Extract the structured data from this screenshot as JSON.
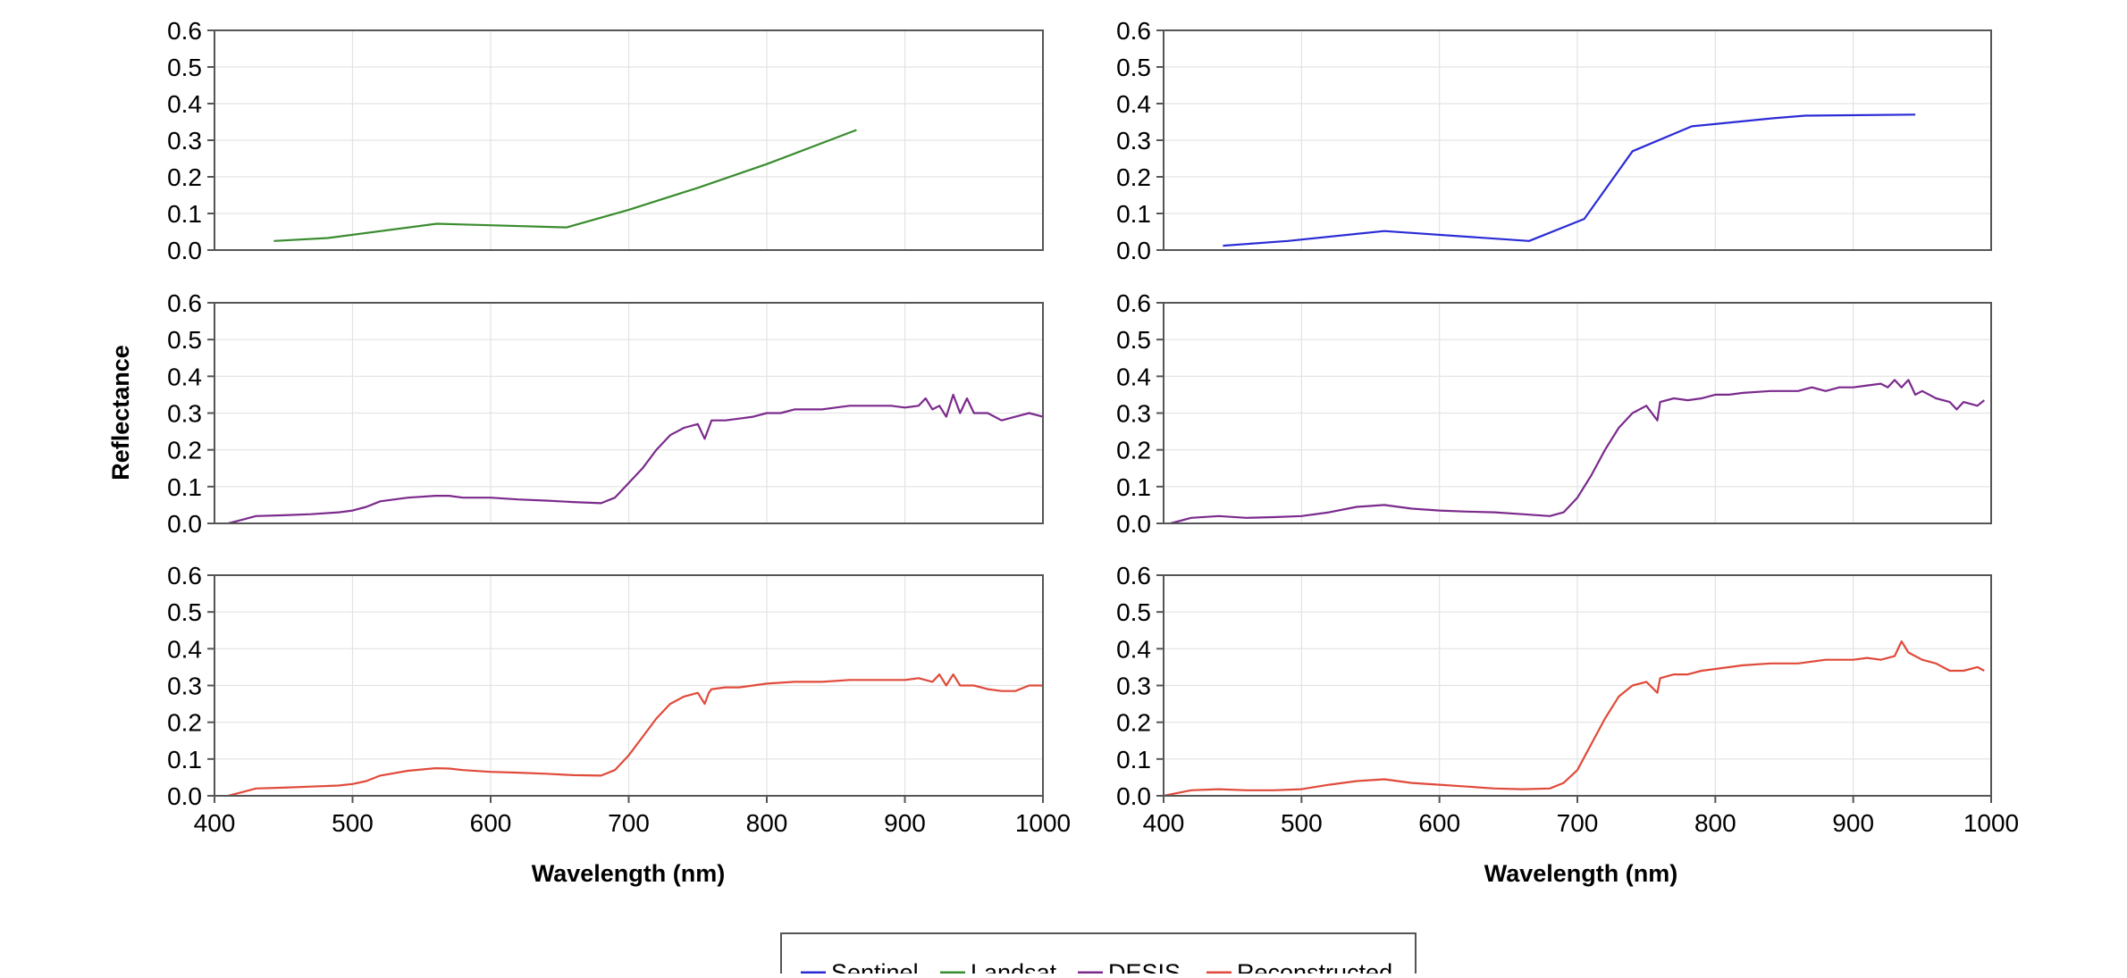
{
  "ylabel": "Reflectance",
  "xlabel": "Wavelength (nm)",
  "x_ticks": [
    "400",
    "500",
    "600",
    "700",
    "800",
    "900",
    "1000"
  ],
  "y_ticks": [
    "0.0",
    "0.1",
    "0.2",
    "0.3",
    "0.4",
    "0.5",
    "0.6"
  ],
  "legend": [
    {
      "label": "Sentinel",
      "color": "#2b2bd6"
    },
    {
      "label": "Landsat",
      "color": "#3a8c2f"
    },
    {
      "label": "DESIS",
      "color": "#7b2a8c"
    },
    {
      "label": "Reconstructed",
      "color": "#e04a3a"
    }
  ],
  "chart_data": [
    {
      "type": "line",
      "panel": "top-left",
      "xlim": [
        400,
        1000
      ],
      "ylim": [
        0,
        0.6
      ],
      "grid": true,
      "series": [
        {
          "name": "Landsat",
          "color": "#3a8c2f",
          "x": [
            443,
            482,
            561,
            655,
            700,
            750,
            800,
            865
          ],
          "y": [
            0.025,
            0.033,
            0.072,
            0.062,
            0.11,
            0.17,
            0.235,
            0.328
          ]
        }
      ]
    },
    {
      "type": "line",
      "panel": "top-right",
      "xlim": [
        400,
        1000
      ],
      "ylim": [
        0,
        0.6
      ],
      "grid": true,
      "series": [
        {
          "name": "Sentinel",
          "color": "#2b2bd6",
          "x": [
            443,
            490,
            560,
            665,
            705,
            740,
            783,
            842,
            865,
            945
          ],
          "y": [
            0.012,
            0.025,
            0.052,
            0.025,
            0.085,
            0.27,
            0.338,
            0.36,
            0.367,
            0.37
          ]
        }
      ]
    },
    {
      "type": "line",
      "panel": "middle-left",
      "xlim": [
        400,
        1000
      ],
      "ylim": [
        0,
        0.6
      ],
      "grid": true,
      "series": [
        {
          "name": "DESIS",
          "color": "#7b2a8c",
          "x": [
            410,
            420,
            430,
            450,
            470,
            490,
            500,
            510,
            520,
            540,
            560,
            570,
            580,
            600,
            620,
            640,
            660,
            680,
            690,
            700,
            710,
            720,
            730,
            740,
            750,
            755,
            758,
            760,
            770,
            780,
            790,
            800,
            810,
            820,
            830,
            840,
            850,
            860,
            870,
            880,
            890,
            900,
            910,
            915,
            920,
            925,
            930,
            935,
            940,
            945,
            950,
            960,
            970,
            980,
            990,
            1000
          ],
          "y": [
            0.0,
            0.01,
            0.02,
            0.022,
            0.025,
            0.03,
            0.035,
            0.045,
            0.06,
            0.07,
            0.075,
            0.075,
            0.07,
            0.07,
            0.065,
            0.062,
            0.058,
            0.055,
            0.07,
            0.11,
            0.15,
            0.2,
            0.24,
            0.26,
            0.27,
            0.23,
            0.26,
            0.28,
            0.28,
            0.285,
            0.29,
            0.3,
            0.3,
            0.31,
            0.31,
            0.31,
            0.315,
            0.32,
            0.32,
            0.32,
            0.32,
            0.315,
            0.32,
            0.34,
            0.31,
            0.32,
            0.29,
            0.35,
            0.3,
            0.34,
            0.3,
            0.3,
            0.28,
            0.29,
            0.3,
            0.29
          ]
        }
      ]
    },
    {
      "type": "line",
      "panel": "middle-right",
      "xlim": [
        400,
        1000
      ],
      "ylim": [
        0,
        0.6
      ],
      "grid": true,
      "series": [
        {
          "name": "DESIS",
          "color": "#7b2a8c",
          "x": [
            405,
            420,
            440,
            460,
            480,
            500,
            520,
            540,
            560,
            580,
            600,
            620,
            640,
            660,
            680,
            690,
            700,
            710,
            720,
            730,
            740,
            750,
            758,
            760,
            770,
            780,
            790,
            800,
            810,
            820,
            840,
            860,
            870,
            880,
            890,
            900,
            910,
            920,
            925,
            930,
            935,
            940,
            945,
            950,
            960,
            970,
            975,
            980,
            990,
            995
          ],
          "y": [
            0.0,
            0.015,
            0.02,
            0.015,
            0.017,
            0.02,
            0.03,
            0.045,
            0.05,
            0.04,
            0.035,
            0.032,
            0.03,
            0.025,
            0.02,
            0.03,
            0.07,
            0.13,
            0.2,
            0.26,
            0.3,
            0.32,
            0.28,
            0.33,
            0.34,
            0.335,
            0.34,
            0.35,
            0.35,
            0.355,
            0.36,
            0.36,
            0.37,
            0.36,
            0.37,
            0.37,
            0.375,
            0.38,
            0.37,
            0.39,
            0.37,
            0.39,
            0.35,
            0.36,
            0.34,
            0.33,
            0.31,
            0.33,
            0.32,
            0.335
          ]
        }
      ]
    },
    {
      "type": "line",
      "panel": "bottom-left",
      "xlim": [
        400,
        1000
      ],
      "ylim": [
        0,
        0.6
      ],
      "grid": true,
      "series": [
        {
          "name": "Reconstructed",
          "color": "#e04a3a",
          "x": [
            410,
            420,
            430,
            450,
            470,
            490,
            500,
            510,
            520,
            540,
            560,
            570,
            580,
            600,
            620,
            640,
            660,
            680,
            690,
            700,
            710,
            720,
            730,
            740,
            750,
            755,
            758,
            760,
            770,
            780,
            790,
            800,
            820,
            840,
            860,
            880,
            900,
            910,
            920,
            925,
            930,
            935,
            940,
            950,
            960,
            970,
            980,
            990,
            1000
          ],
          "y": [
            0.0,
            0.01,
            0.02,
            0.022,
            0.025,
            0.028,
            0.032,
            0.04,
            0.055,
            0.068,
            0.075,
            0.074,
            0.07,
            0.065,
            0.063,
            0.06,
            0.056,
            0.055,
            0.07,
            0.11,
            0.16,
            0.21,
            0.25,
            0.27,
            0.28,
            0.25,
            0.28,
            0.29,
            0.295,
            0.295,
            0.3,
            0.305,
            0.31,
            0.31,
            0.315,
            0.315,
            0.315,
            0.32,
            0.31,
            0.33,
            0.3,
            0.33,
            0.3,
            0.3,
            0.29,
            0.285,
            0.285,
            0.3,
            0.3
          ]
        }
      ]
    },
    {
      "type": "line",
      "panel": "bottom-right",
      "xlim": [
        400,
        1000
      ],
      "ylim": [
        0,
        0.6
      ],
      "grid": true,
      "series": [
        {
          "name": "Reconstructed",
          "color": "#e04a3a",
          "x": [
            400,
            420,
            440,
            460,
            480,
            500,
            520,
            540,
            560,
            580,
            600,
            620,
            640,
            660,
            680,
            690,
            700,
            710,
            720,
            730,
            740,
            750,
            758,
            760,
            770,
            780,
            790,
            800,
            820,
            840,
            860,
            880,
            900,
            910,
            920,
            930,
            935,
            940,
            945,
            950,
            960,
            970,
            980,
            990,
            995
          ],
          "y": [
            0.0,
            0.015,
            0.018,
            0.015,
            0.015,
            0.018,
            0.03,
            0.04,
            0.045,
            0.035,
            0.03,
            0.025,
            0.02,
            0.018,
            0.02,
            0.035,
            0.07,
            0.14,
            0.21,
            0.27,
            0.3,
            0.31,
            0.28,
            0.32,
            0.33,
            0.33,
            0.34,
            0.345,
            0.355,
            0.36,
            0.36,
            0.37,
            0.37,
            0.375,
            0.37,
            0.38,
            0.42,
            0.39,
            0.38,
            0.37,
            0.36,
            0.34,
            0.34,
            0.35,
            0.34
          ]
        }
      ]
    }
  ]
}
